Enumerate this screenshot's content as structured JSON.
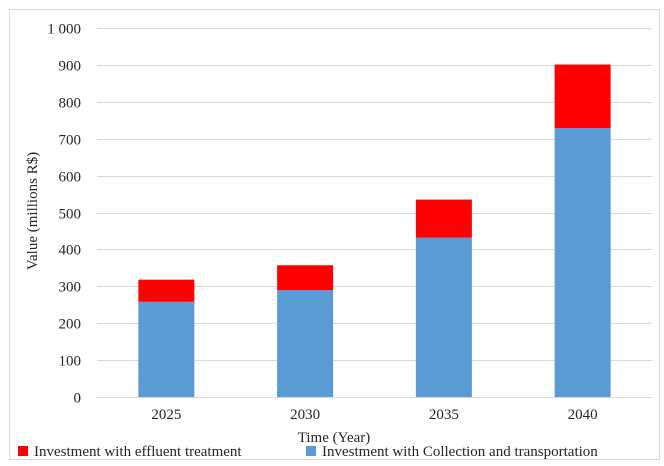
{
  "chart_data": {
    "type": "bar",
    "stacked": true,
    "categories": [
      "2025",
      "2030",
      "2035",
      "2040"
    ],
    "series": [
      {
        "name": "Investment with Collection and transportation",
        "color": "#5b9bd5",
        "values": [
          258,
          290,
          432,
          729
        ]
      },
      {
        "name": "Investment with effluent treatment",
        "color": "#ff0000",
        "values": [
          60,
          67,
          103,
          172
        ]
      }
    ],
    "title": "",
    "xlabel": "Time (Year)",
    "ylabel": "Value (millions R$)",
    "ylim": [
      0,
      1000
    ],
    "yticks": [
      "0",
      "100",
      "200",
      "300",
      "400",
      "500",
      "600",
      "700",
      "800",
      "900",
      "1 000"
    ],
    "grid": true,
    "legend_position": "bottom",
    "legend_order": [
      1,
      0
    ]
  }
}
